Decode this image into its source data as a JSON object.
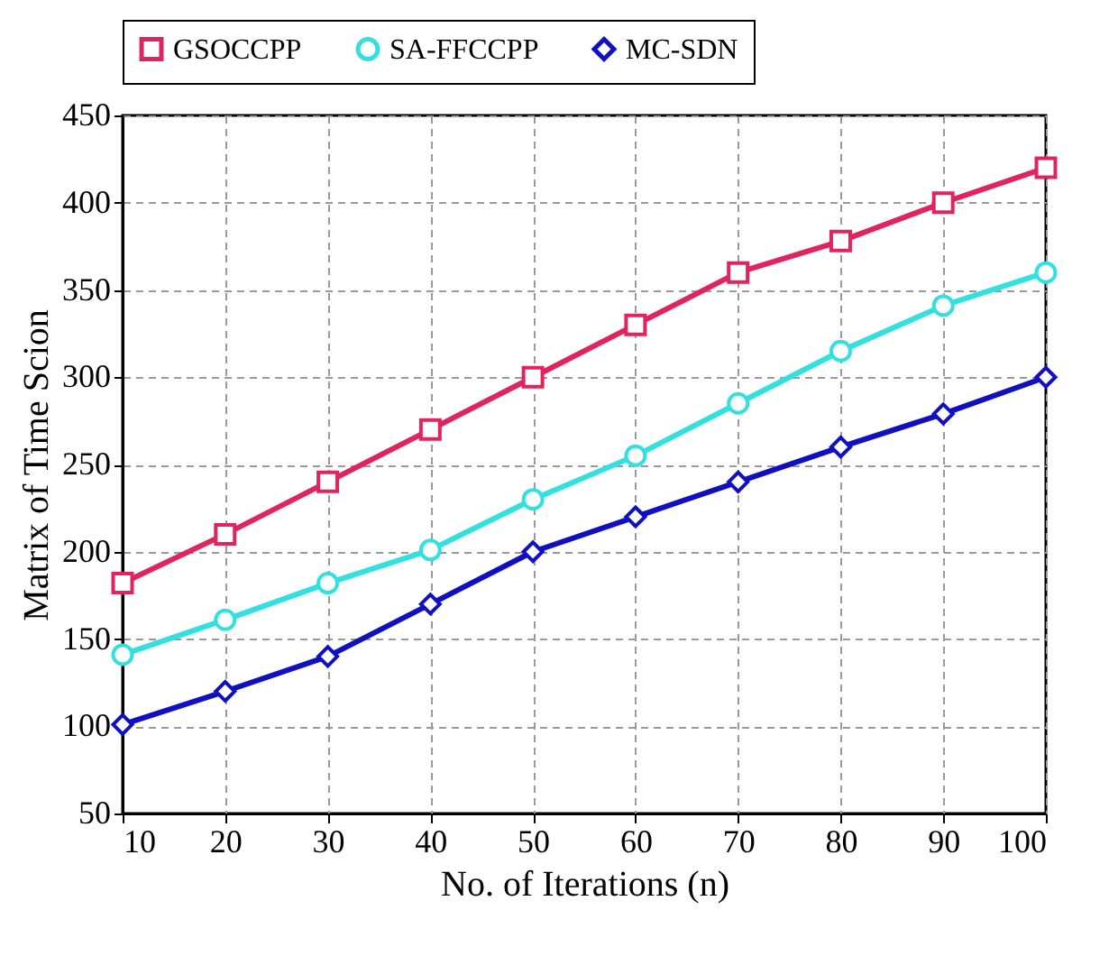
{
  "chart_data": {
    "type": "line",
    "xlabel": "No. of Iterations (n)",
    "ylabel": "Matrix of Time Scion",
    "x": [
      10,
      20,
      30,
      40,
      50,
      60,
      70,
      80,
      90,
      100
    ],
    "series": [
      {
        "name": "GSOCCPP",
        "color": "#e0245e",
        "marker": "square",
        "values": [
          182,
          210,
          240,
          270,
          300,
          330,
          360,
          378,
          400,
          420
        ]
      },
      {
        "name": "SA-FFCCPP",
        "color": "#33e0e0",
        "marker": "circle",
        "values": [
          141,
          161,
          182,
          201,
          230,
          255,
          285,
          315,
          341,
          360
        ]
      },
      {
        "name": "MC-SDN",
        "color": "#1010c0",
        "marker": "diamond",
        "values": [
          101,
          120,
          140,
          170,
          200,
          220,
          240,
          260,
          279,
          300
        ]
      }
    ],
    "xlim": [
      10,
      100
    ],
    "xticks": [
      10,
      20,
      30,
      40,
      50,
      60,
      70,
      80,
      90,
      100
    ],
    "ylim": [
      50,
      450
    ],
    "yticks": [
      50,
      100,
      150,
      200,
      250,
      300,
      350,
      400,
      450
    ],
    "grid": true,
    "legend": "top",
    "line_style": "solid"
  }
}
